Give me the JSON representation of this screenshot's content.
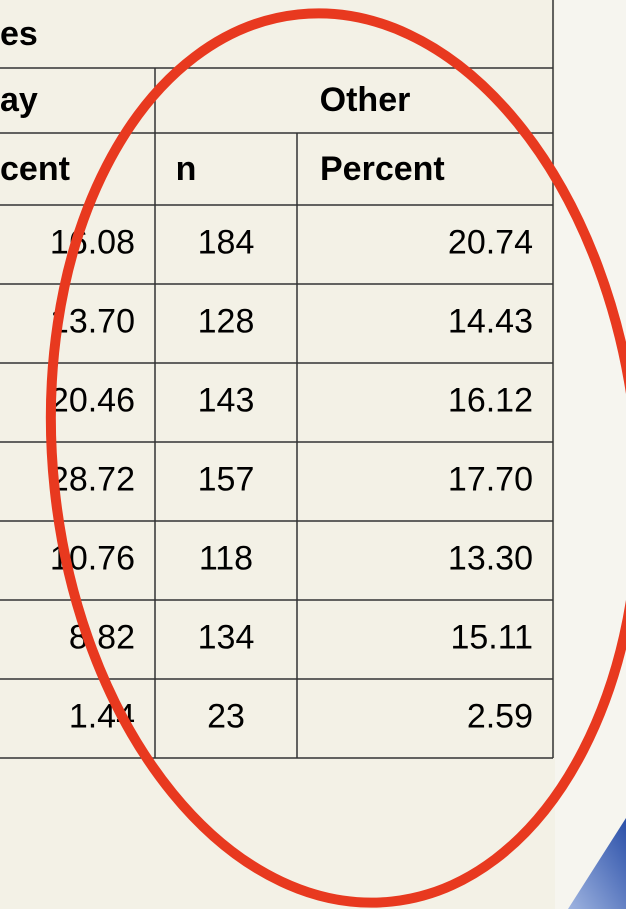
{
  "header": {
    "title_fragment": "es",
    "group_fragment": "ay",
    "group": "Other",
    "column_fragment": "cent",
    "columns": [
      "n",
      "Percent"
    ]
  },
  "table": {
    "rows": [
      [
        "16.08",
        "184",
        "20.74"
      ],
      [
        "13.70",
        "128",
        "14.43"
      ],
      [
        "20.46",
        "143",
        "16.12"
      ],
      [
        "28.72",
        "157",
        "17.70"
      ],
      [
        "10.76",
        "118",
        "13.30"
      ],
      [
        "8.82",
        "134",
        "15.11"
      ],
      [
        "1.44",
        "23",
        "2.59"
      ]
    ]
  }
}
